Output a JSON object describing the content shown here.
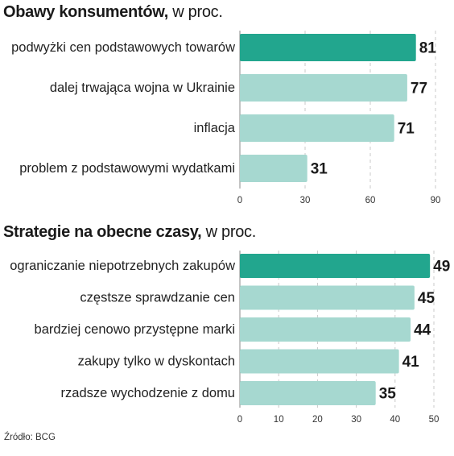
{
  "charts": [
    {
      "title_bold": "Obawy konsumentów,",
      "title_rest": " w proc.",
      "colors": {
        "highlight": "#22a68e",
        "bar": "#a6d8d0"
      }
    },
    {
      "title_bold": "Strategie na obecne czasy,",
      "title_rest": " w proc.",
      "colors": {
        "highlight": "#22a68e",
        "bar": "#a6d8d0"
      }
    }
  ],
  "source": "Źródło: BCG",
  "chart_data": [
    {
      "type": "bar",
      "orientation": "horizontal",
      "title": "Obawy konsumentów, w proc.",
      "categories": [
        "podwyżki cen podstawowych towarów",
        "dalej trwająca wojna w Ukrainie",
        "inflacja",
        "problem z podstawowymi wydatkami"
      ],
      "values": [
        81,
        77,
        71,
        31
      ],
      "highlight_index": 0,
      "xlim": [
        0,
        90
      ],
      "ticks": [
        0,
        30,
        60,
        90
      ],
      "grid": true
    },
    {
      "type": "bar",
      "orientation": "horizontal",
      "title": "Strategie na obecne czasy, w proc.",
      "categories": [
        "ograniczanie niepotrzebnych zakupów",
        "częstsze sprawdzanie cen",
        "bardziej cenowo przystępne marki",
        "zakupy tylko w dyskontach",
        "rzadsze wychodzenie z domu"
      ],
      "values": [
        49,
        45,
        44,
        41,
        35
      ],
      "highlight_index": 0,
      "xlim": [
        0,
        50
      ],
      "ticks": [
        0,
        10,
        20,
        30,
        40,
        50
      ],
      "grid": true
    }
  ]
}
